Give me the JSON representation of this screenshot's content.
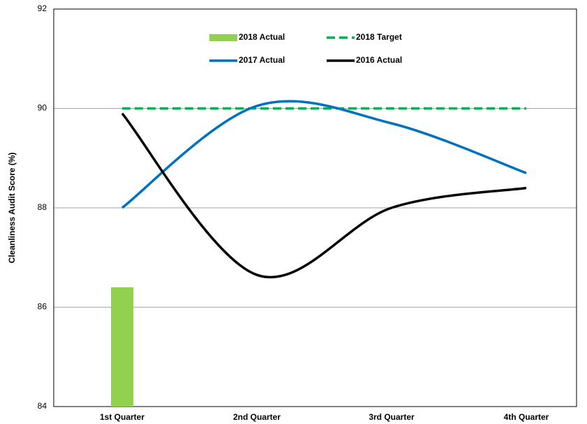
{
  "chart_data": {
    "type": "combo",
    "y_label": "Cleanliness Audit Score (%)",
    "categories": [
      "1st Quarter",
      "2nd Quarter",
      "3rd Quarter",
      "4th Quarter"
    ],
    "ylim": [
      84,
      92
    ],
    "yticks": [
      84,
      86,
      88,
      90,
      92
    ],
    "grid": true,
    "legend": "top",
    "series": [
      {
        "name": "2018 Actual",
        "type": "bar",
        "color": "#92d050",
        "values": [
          86.4,
          null,
          null,
          null
        ]
      },
      {
        "name": "2018 Target",
        "type": "line",
        "dashed": true,
        "color": "#00b050",
        "values": [
          90,
          90,
          90,
          90
        ]
      },
      {
        "name": "2017 Actual",
        "type": "line",
        "color": "#0070c0",
        "values": [
          88.0,
          90.05,
          89.7,
          88.7
        ]
      },
      {
        "name": "2016 Actual",
        "type": "line",
        "color": "#000000",
        "values": [
          89.9,
          86.65,
          88.0,
          88.4
        ]
      }
    ]
  }
}
